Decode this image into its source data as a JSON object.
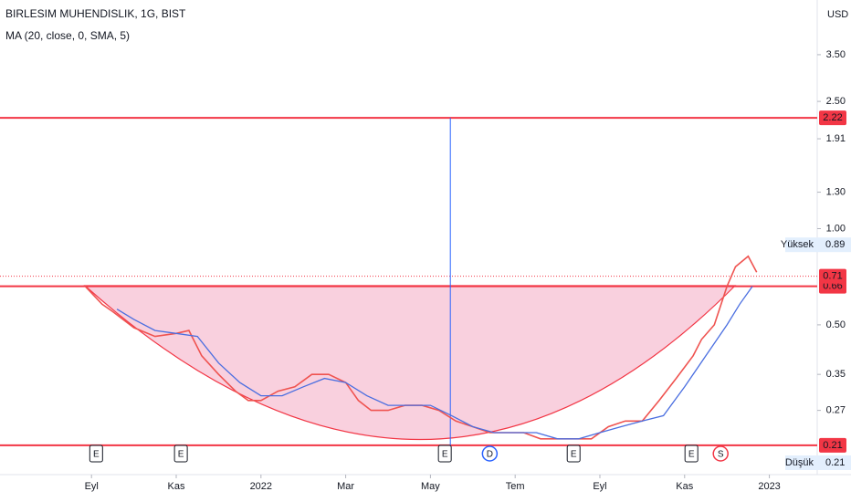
{
  "chart_data": {
    "type": "line",
    "title": "BIRLESIM MUHENDISLIK, 1G, BIST",
    "subtitle": "MA (20, close, 0, SMA, 5)",
    "currency": "USD",
    "log_scale": true,
    "xlim": [
      -2.16,
      17.13
    ],
    "xticks": [
      {
        "value": 0,
        "label": "Eyl"
      },
      {
        "value": 2,
        "label": "Kas"
      },
      {
        "value": 4,
        "label": "2022"
      },
      {
        "value": 6,
        "label": "Mar"
      },
      {
        "value": 8,
        "label": "May"
      },
      {
        "value": 10,
        "label": "Tem"
      },
      {
        "value": 12,
        "label": "Eyl"
      },
      {
        "value": 14,
        "label": "Kas"
      },
      {
        "value": 16,
        "label": "2023"
      }
    ],
    "ylim": [
      0.17,
      5.19
    ],
    "yticks": [
      {
        "value": 3.5,
        "label": "3.50"
      },
      {
        "value": 2.5,
        "label": "2.50"
      },
      1.91,
      {
        "value": 1.3,
        "label": "1.30"
      },
      {
        "value": 1,
        "label": "1.00"
      },
      {
        "value": 0.5,
        "label": "0.50"
      },
      0.35,
      0.27
    ],
    "series": [
      {
        "name": "BIRLESIM MUHENDISLIK",
        "color": "#ef5350",
        "x": [
          -0.15,
          0.25,
          0.5,
          1.0,
          1.5,
          2.0,
          2.3,
          2.6,
          3.0,
          3.4,
          3.7,
          4.0,
          4.4,
          4.8,
          5.2,
          5.6,
          6.0,
          6.3,
          6.6,
          7.0,
          7.4,
          7.8,
          8.2,
          8.6,
          9.0,
          9.4,
          9.8,
          10.2,
          10.6,
          11.0,
          11.4,
          11.8,
          12.2,
          12.6,
          13.0,
          13.4,
          13.8,
          14.2,
          14.4,
          14.7,
          15.0,
          15.2,
          15.5,
          15.7
        ],
        "values": [
          0.66,
          0.58,
          0.55,
          0.49,
          0.46,
          0.47,
          0.48,
          0.4,
          0.35,
          0.31,
          0.29,
          0.29,
          0.31,
          0.32,
          0.35,
          0.35,
          0.33,
          0.29,
          0.27,
          0.27,
          0.28,
          0.28,
          0.27,
          0.25,
          0.24,
          0.23,
          0.23,
          0.23,
          0.22,
          0.22,
          0.22,
          0.22,
          0.24,
          0.25,
          0.25,
          0.29,
          0.34,
          0.4,
          0.45,
          0.5,
          0.66,
          0.76,
          0.82,
          0.73
        ]
      },
      {
        "name": "MA",
        "color": "#4a6ee0",
        "x": [
          0.6,
          1.0,
          1.5,
          2.0,
          2.5,
          3.0,
          3.5,
          4.0,
          4.5,
          5.0,
          5.5,
          6.0,
          6.5,
          7.0,
          7.5,
          8.0,
          8.5,
          9.0,
          9.5,
          10.0,
          10.5,
          11.0,
          11.5,
          12.0,
          12.5,
          13.0,
          13.5,
          14.0,
          14.5,
          15.0,
          15.3,
          15.6
        ],
        "values": [
          0.56,
          0.52,
          0.48,
          0.47,
          0.46,
          0.38,
          0.33,
          0.3,
          0.3,
          0.32,
          0.34,
          0.33,
          0.3,
          0.28,
          0.28,
          0.28,
          0.26,
          0.24,
          0.23,
          0.23,
          0.23,
          0.22,
          0.22,
          0.23,
          0.24,
          0.25,
          0.26,
          0.32,
          0.4,
          0.5,
          0.58,
          0.66
        ]
      }
    ],
    "levels": [
      {
        "value": 2.22,
        "color": "#f23645"
      },
      {
        "value": 0.66,
        "color": "#f23645"
      },
      {
        "value": 0.21,
        "color": "#f23645"
      }
    ],
    "last_price": {
      "value": 0.71,
      "color": "#f23645"
    },
    "high": {
      "label": "Yüksek",
      "value": 0.89
    },
    "low": {
      "label": "Düşük",
      "value": 0.21
    },
    "vline_x": 8.47,
    "events": [
      {
        "x": 0.11,
        "label": "E"
      },
      {
        "x": 2.11,
        "label": "E"
      },
      {
        "x": 8.34,
        "label": "E"
      },
      {
        "x": 9.4,
        "label": "D"
      },
      {
        "x": 11.38,
        "label": "E"
      },
      {
        "x": 14.16,
        "label": "E"
      },
      {
        "x": 14.85,
        "label": "S"
      }
    ]
  }
}
